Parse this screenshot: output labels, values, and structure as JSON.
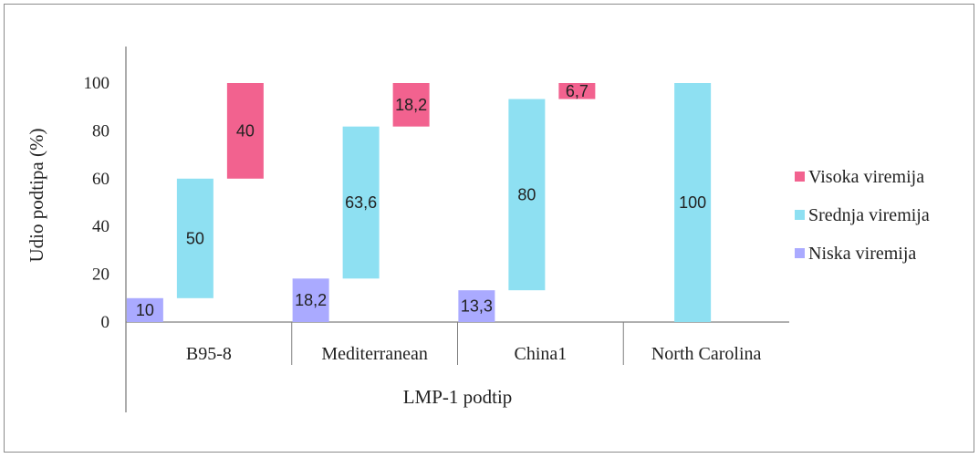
{
  "chart_data": {
    "type": "bar",
    "subtype": "floating-stacked",
    "title": "",
    "xlabel": "LMP-1 podtip",
    "ylabel": "Udio podtipa (%)",
    "ylim": [
      0,
      100
    ],
    "yticks": [
      "0",
      "20",
      "40",
      "60",
      "80",
      "100"
    ],
    "grid": false,
    "legend_position": "right",
    "categories": [
      "B95-8",
      "Mediterranean",
      "China1",
      "North Carolina"
    ],
    "series": [
      {
        "name": "Niska viremija",
        "color": "#aaaaff",
        "values": [
          10,
          18.2,
          13.3,
          0
        ],
        "labels": [
          "10",
          "18,2",
          "13,3",
          ""
        ]
      },
      {
        "name": "Srednja viremija",
        "color": "#8ee0f2",
        "values": [
          50,
          63.6,
          80,
          100
        ],
        "labels": [
          "50",
          "63,6",
          "80",
          "100"
        ]
      },
      {
        "name": "Visoka viremija",
        "color": "#f2628f",
        "values": [
          40,
          18.2,
          6.7,
          0
        ],
        "labels": [
          "40",
          "18,2",
          "6,7",
          ""
        ]
      }
    ],
    "legend_order": [
      "Visoka viremija",
      "Srednja viremija",
      "Niska viremija"
    ]
  }
}
